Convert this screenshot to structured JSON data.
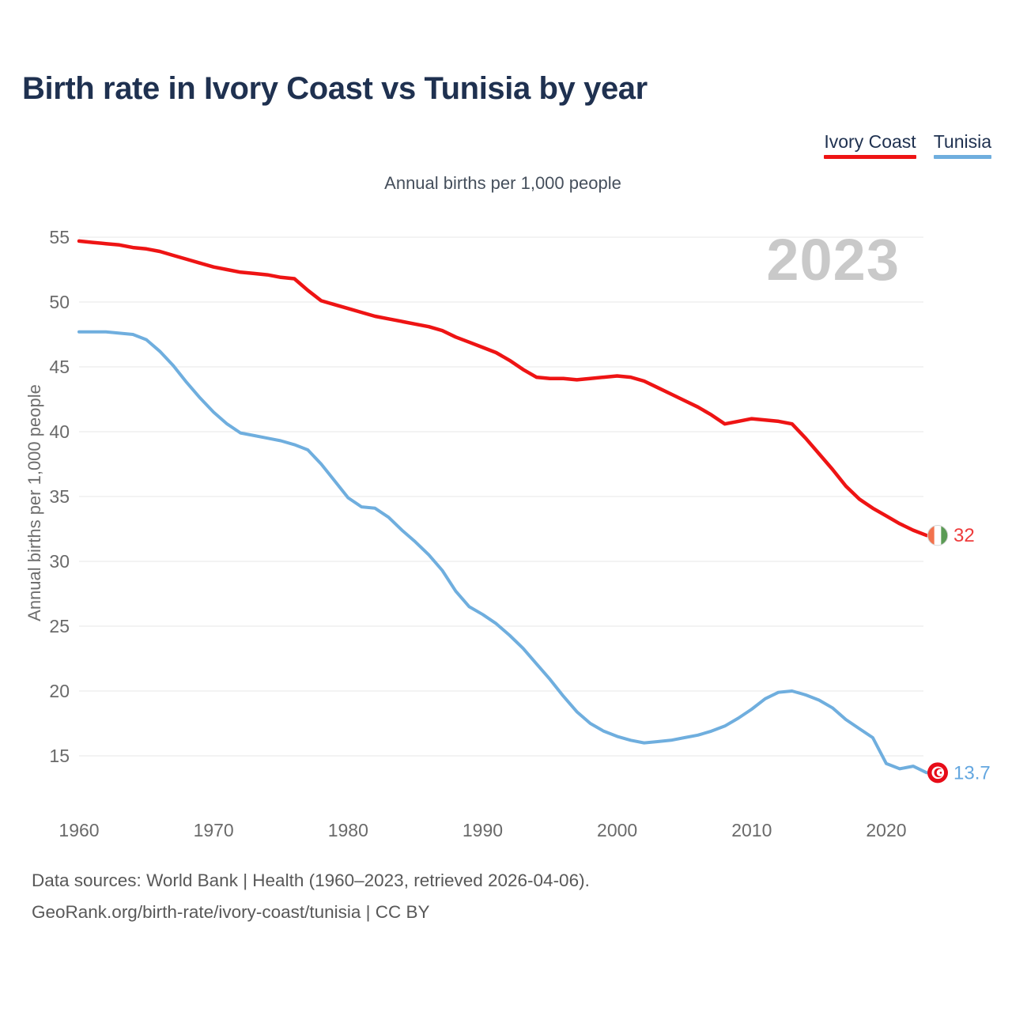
{
  "header": {
    "title": "Birth rate in Ivory Coast vs Tunisia by year"
  },
  "legend": {
    "items": [
      {
        "id": "ivory-coast",
        "label": "Ivory Coast",
        "color": "#ee1414"
      },
      {
        "id": "tunisia",
        "label": "Tunisia",
        "color": "#6faede"
      }
    ]
  },
  "subtitle": "Annual births per 1,000 people",
  "watermark": "2023",
  "footer": {
    "line1": "Data sources: World Bank | Health (1960–2023, retrieved 2026-04-06).",
    "line2": "GeoRank.org/birth-rate/ivory-coast/tunisia | CC BY"
  },
  "chart_data": {
    "type": "line",
    "title": "Birth rate in Ivory Coast vs Tunisia by year",
    "subtitle": "Annual births per 1,000 people",
    "xlabel": "",
    "ylabel": "Annual births per 1,000 people",
    "xlim": [
      1960,
      2023
    ],
    "ylim": [
      15,
      55
    ],
    "grid": true,
    "legend_position": "top-right",
    "xticks": [
      1960,
      1970,
      1980,
      1990,
      2000,
      2010,
      2020
    ],
    "yticks": [
      15,
      20,
      25,
      30,
      35,
      40,
      45,
      50,
      55
    ],
    "x": [
      1960,
      1961,
      1962,
      1963,
      1964,
      1965,
      1966,
      1967,
      1968,
      1969,
      1970,
      1971,
      1972,
      1973,
      1974,
      1975,
      1976,
      1977,
      1978,
      1979,
      1980,
      1981,
      1982,
      1983,
      1984,
      1985,
      1986,
      1987,
      1988,
      1989,
      1990,
      1991,
      1992,
      1993,
      1994,
      1995,
      1996,
      1997,
      1998,
      1999,
      2000,
      2001,
      2002,
      2003,
      2004,
      2005,
      2006,
      2007,
      2008,
      2009,
      2010,
      2011,
      2012,
      2013,
      2014,
      2015,
      2016,
      2017,
      2018,
      2019,
      2020,
      2021,
      2022,
      2023
    ],
    "series": [
      {
        "id": "ivory-coast",
        "name": "Ivory Coast",
        "color": "#ee1414",
        "width": 4.5,
        "flag": "ivory-coast",
        "end_label": "32",
        "label_color": "#ee3b3b",
        "values": [
          54.7,
          54.6,
          54.5,
          54.4,
          54.2,
          54.1,
          53.9,
          53.6,
          53.3,
          53.0,
          52.7,
          52.5,
          52.3,
          52.2,
          52.1,
          51.9,
          51.8,
          50.9,
          50.1,
          49.8,
          49.5,
          49.2,
          48.9,
          48.7,
          48.5,
          48.3,
          48.1,
          47.8,
          47.3,
          46.9,
          46.5,
          46.1,
          45.5,
          44.8,
          44.2,
          44.1,
          44.1,
          44.0,
          44.1,
          44.2,
          44.3,
          44.2,
          43.9,
          43.4,
          42.9,
          42.4,
          41.9,
          41.3,
          40.6,
          40.8,
          41.0,
          40.9,
          40.8,
          40.6,
          39.5,
          38.3,
          37.1,
          35.8,
          34.8,
          34.1,
          33.5,
          32.9,
          32.4,
          32.0
        ]
      },
      {
        "id": "tunisia",
        "name": "Tunisia",
        "color": "#6faede",
        "width": 4,
        "flag": "tunisia",
        "end_label": "13.7",
        "label_color": "#64a7e0",
        "values": [
          47.7,
          47.7,
          47.7,
          47.6,
          47.5,
          47.1,
          46.2,
          45.1,
          43.8,
          42.6,
          41.5,
          40.6,
          39.9,
          39.7,
          39.5,
          39.3,
          39.0,
          38.6,
          37.5,
          36.2,
          34.9,
          34.2,
          34.1,
          33.4,
          32.4,
          31.5,
          30.5,
          29.3,
          27.7,
          26.5,
          25.9,
          25.2,
          24.3,
          23.3,
          22.1,
          20.9,
          19.6,
          18.4,
          17.5,
          16.9,
          16.5,
          16.2,
          16.0,
          16.1,
          16.2,
          16.4,
          16.6,
          16.9,
          17.3,
          17.9,
          18.6,
          19.4,
          19.9,
          20.0,
          19.7,
          19.3,
          18.7,
          17.8,
          17.1,
          16.4,
          14.4,
          14.0,
          14.2,
          13.7
        ]
      }
    ],
    "flag_colors": {
      "ivory-coast": [
        "#f2724d",
        "#ffffff",
        "#5b9b55"
      ],
      "tunisia": [
        "#e70c18",
        "#ffffff"
      ]
    }
  }
}
